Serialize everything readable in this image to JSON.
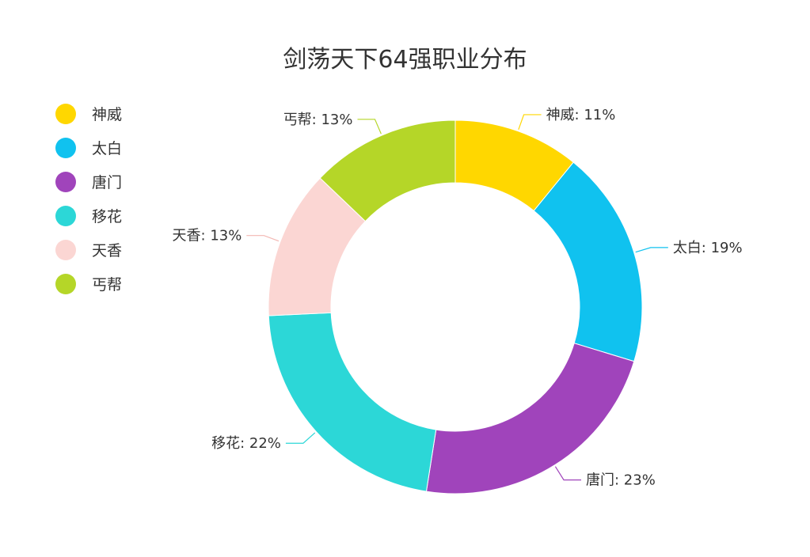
{
  "chart_data": {
    "type": "pie",
    "subtype": "donut",
    "title": "剑荡天下64强职业分布",
    "legend_position": "left",
    "slices": [
      {
        "label": "神威",
        "value": 11,
        "display": "神威: 11%",
        "color": "#FFD700"
      },
      {
        "label": "太白",
        "value": 19,
        "display": "太白: 19%",
        "color": "#10C2EF"
      },
      {
        "label": "唐门",
        "value": 23,
        "display": "唐门: 23%",
        "color": "#A044BB"
      },
      {
        "label": "移花",
        "value": 22,
        "display": "移花: 22%",
        "color": "#2CD7D7"
      },
      {
        "label": "天香",
        "value": 13,
        "display": "天香: 13%",
        "color": "#FBD6D3"
      },
      {
        "label": "丐帮",
        "value": 13,
        "display": "丐帮: 13%",
        "color": "#B5D628"
      }
    ]
  }
}
